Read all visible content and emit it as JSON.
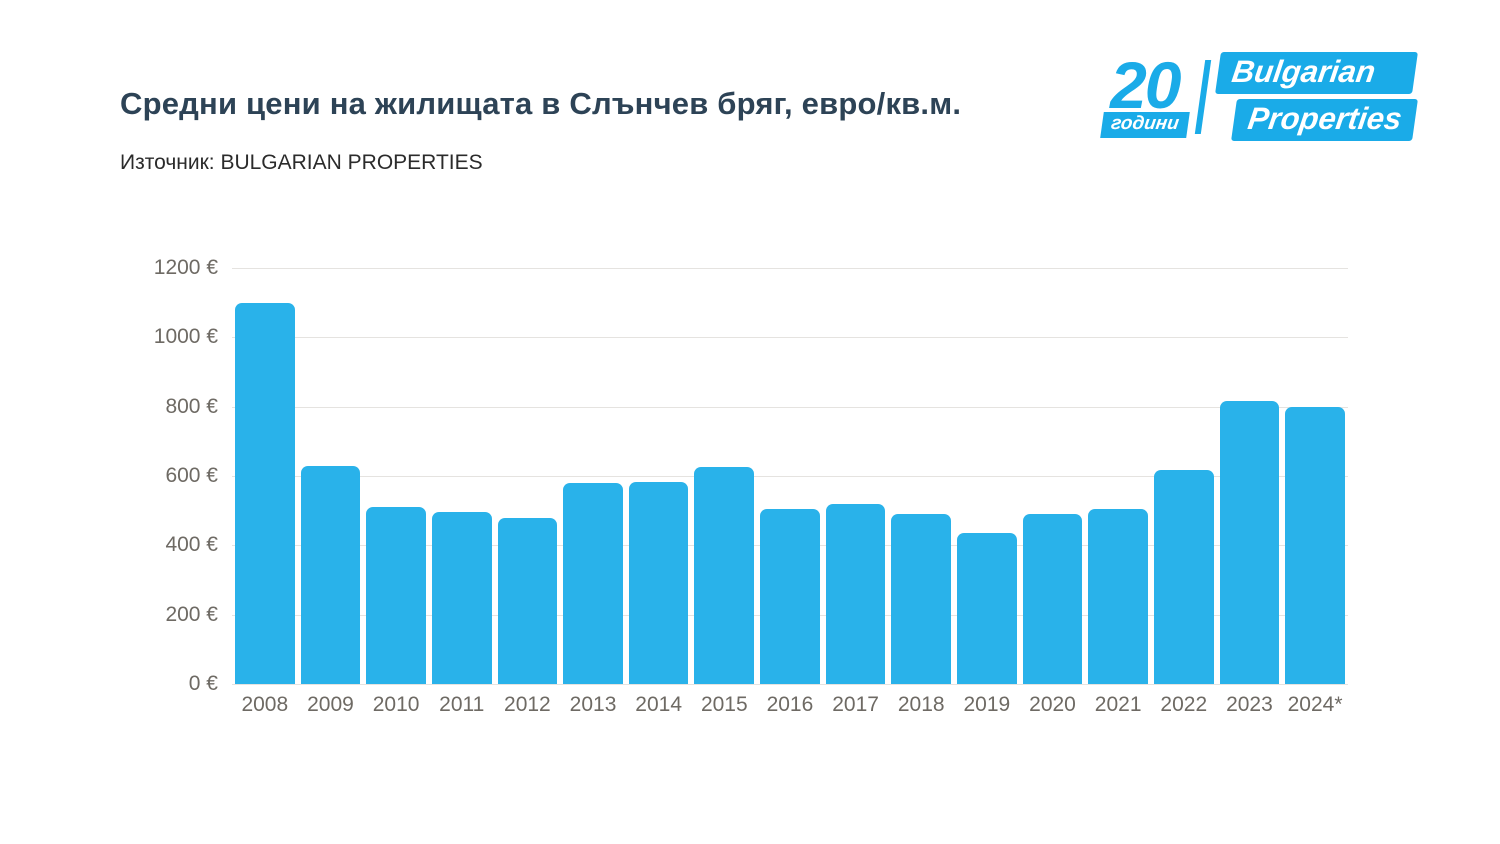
{
  "page": {
    "title": "Средни цени на жилищата в Слънчев бряг, евро/кв.м.",
    "source": "Източник: BULGARIAN PROPERTIES"
  },
  "logo": {
    "number": "20",
    "years_label": "години",
    "brand_line1": "Bulgarian",
    "brand_line2": "Properties"
  },
  "colors": {
    "bar": "#29b2ea",
    "title": "#2d4356",
    "axis_label": "#6e6a64",
    "gridline": "#e5e3e0",
    "logo_blue": "#1aabe8"
  },
  "chart_data": {
    "type": "bar",
    "title": "Средни цени на жилищата в Слънчев бряг, евро/кв.м.",
    "subtitle": "Източник: BULGARIAN PROPERTIES",
    "categories": [
      "2008",
      "2009",
      "2010",
      "2011",
      "2012",
      "2013",
      "2014",
      "2015",
      "2016",
      "2017",
      "2018",
      "2019",
      "2020",
      "2021",
      "2022",
      "2023",
      "2024*"
    ],
    "values": [
      1100,
      630,
      510,
      497,
      478,
      580,
      583,
      627,
      505,
      520,
      490,
      435,
      490,
      505,
      617,
      815,
      800
    ],
    "xlabel": "",
    "ylabel": "",
    "ylim": [
      0,
      1200
    ],
    "ytick_step": 200,
    "ytick_suffix": " €",
    "grid": true,
    "legend": false,
    "bar_color": "#29b2ea"
  }
}
